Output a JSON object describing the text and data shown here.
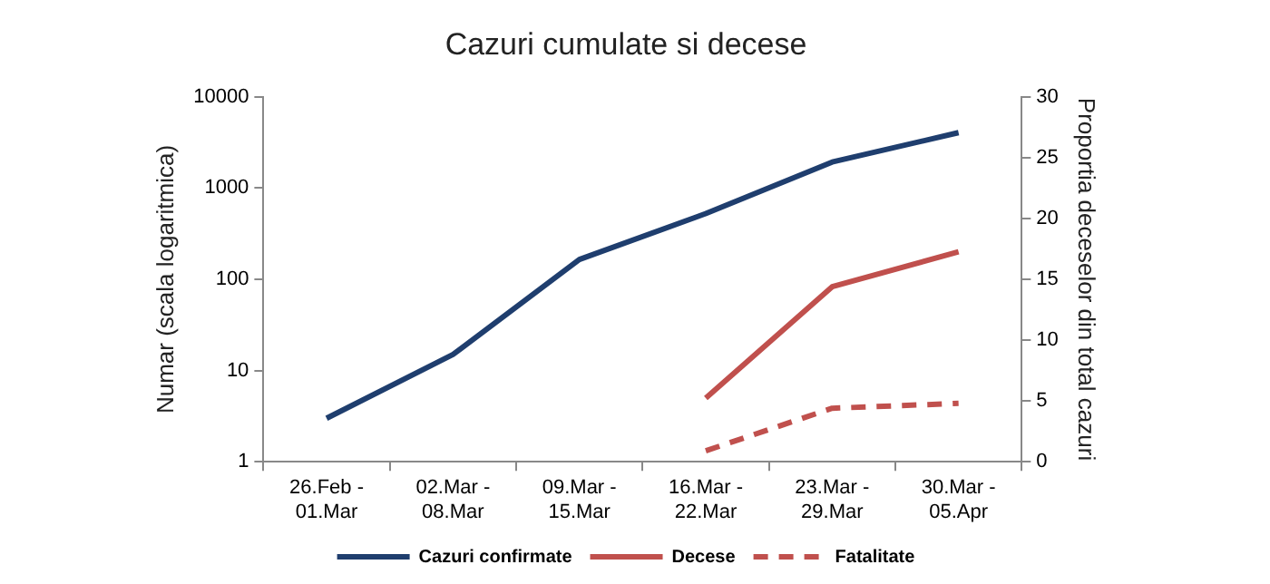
{
  "chart_data": {
    "type": "line",
    "title": "Cazuri cumulate si decese",
    "ylabel": "Numar (scala logaritmica)",
    "y2label": "Proportia deceselor din total cazuri",
    "categories": [
      "26.Feb -\n01.Mar",
      "02.Mar -\n08.Mar",
      "09.Mar -\n15.Mar",
      "16.Mar -\n22.Mar",
      "23.Mar -\n29.Mar",
      "30.Mar -\n05.Apr"
    ],
    "series": [
      {
        "name": "Cazuri confirmate",
        "color": "#1f3e6e",
        "values": [
          3,
          15,
          165,
          525,
          1930,
          4050
        ]
      },
      {
        "name": "Decese",
        "color": "#c0504d",
        "values": [
          null,
          null,
          null,
          5,
          83,
          200
        ]
      },
      {
        "name": "Fatalitate",
        "color": "#c0504d",
        "axis": "y2",
        "line_style": "dashed",
        "values": [
          null,
          null,
          null,
          0.9,
          4.4,
          4.8
        ]
      }
    ],
    "log": "y",
    "ylim": [
      1,
      10000
    ],
    "yticks": [
      1,
      10,
      100,
      1000,
      10000
    ],
    "y2lim": [
      0,
      30
    ],
    "y2ticks": [
      0,
      5,
      10,
      15,
      20,
      25,
      30
    ],
    "grid": false,
    "legend": "bottom",
    "marker": "none",
    "line_style": "solid"
  }
}
